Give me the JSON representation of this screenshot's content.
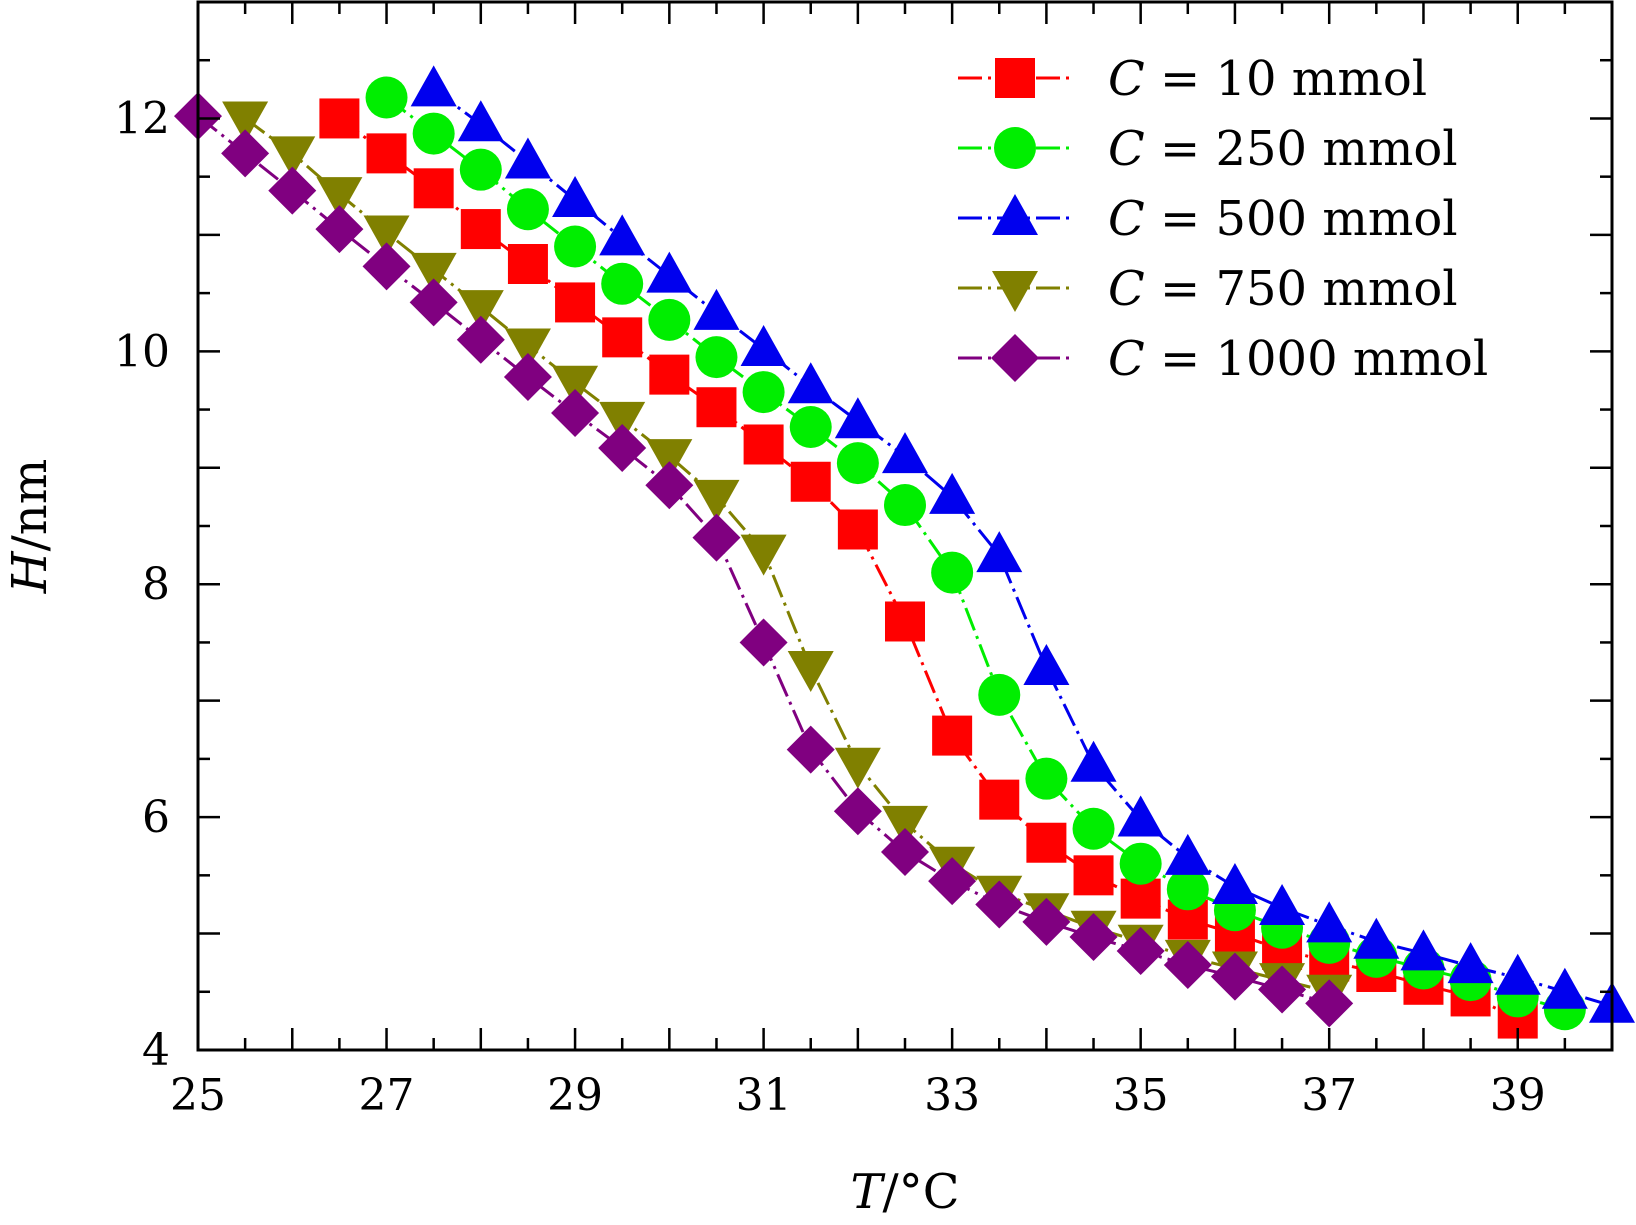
{
  "chart_data": {
    "type": "line",
    "title": "",
    "xlabel_italic": "T",
    "xlabel_unit": "/°C",
    "ylabel_italic": "H",
    "ylabel_unit": "/nm",
    "xlim": [
      25,
      40
    ],
    "ylim": [
      4,
      13
    ],
    "x_major_ticks": [
      25,
      27,
      29,
      31,
      33,
      35,
      37,
      39
    ],
    "x_tick_labels": [
      "25",
      "27",
      "29",
      "31",
      "33",
      "35",
      "37",
      "39"
    ],
    "y_major_ticks": [
      4,
      6,
      8,
      10,
      12
    ],
    "y_tick_labels": [
      "4",
      "6",
      "8",
      "10",
      "12"
    ],
    "grid": false,
    "legend_position": "top-right",
    "series": [
      {
        "name": "C = 10 mmol",
        "label_var": "C",
        "label_value": "10 mmol",
        "color": "#ff0000",
        "marker": "square",
        "x": [
          26.5,
          27,
          27.5,
          28,
          28.5,
          29,
          29.5,
          30,
          30.5,
          31,
          31.5,
          32,
          32.5,
          33,
          33.5,
          34,
          34.5,
          35,
          35.5,
          36,
          36.5,
          37,
          37.5,
          38,
          38.5,
          39
        ],
        "y": [
          12.0,
          11.7,
          11.4,
          11.05,
          10.75,
          10.42,
          10.12,
          9.8,
          9.52,
          9.2,
          8.88,
          8.47,
          7.68,
          6.7,
          6.15,
          5.78,
          5.5,
          5.3,
          5.12,
          5.0,
          4.86,
          4.76,
          4.67,
          4.56,
          4.46,
          4.27
        ]
      },
      {
        "name": "C = 250 mmol",
        "label_var": "C",
        "label_value": "250 mmol",
        "color": "#00ee00",
        "marker": "circle",
        "x": [
          27,
          27.5,
          28,
          28.5,
          29,
          29.5,
          30,
          30.5,
          31,
          31.5,
          32,
          32.5,
          33,
          33.5,
          34,
          34.5,
          35,
          35.5,
          36,
          36.5,
          37,
          37.5,
          38,
          38.5,
          39,
          39.5
        ],
        "y": [
          12.18,
          11.87,
          11.56,
          11.22,
          10.9,
          10.58,
          10.27,
          9.95,
          9.65,
          9.35,
          9.04,
          8.68,
          8.1,
          7.05,
          6.33,
          5.9,
          5.6,
          5.38,
          5.2,
          5.05,
          4.92,
          4.8,
          4.7,
          4.6,
          4.46,
          4.35
        ]
      },
      {
        "name": "C = 500 mmol",
        "label_var": "C",
        "label_value": "500 mmol",
        "color": "#0000ee",
        "marker": "triangle-up",
        "x": [
          27.5,
          28,
          28.5,
          29,
          29.5,
          30,
          30.5,
          31,
          31.5,
          32,
          32.5,
          33,
          33.5,
          34,
          34.5,
          35,
          35.5,
          36,
          36.5,
          37,
          37.5,
          38,
          38.5,
          39,
          39.5,
          40
        ],
        "y": [
          12.25,
          11.95,
          11.63,
          11.3,
          10.97,
          10.65,
          10.33,
          10.02,
          9.7,
          9.4,
          9.1,
          8.75,
          8.25,
          7.28,
          6.45,
          5.98,
          5.65,
          5.4,
          5.22,
          5.07,
          4.93,
          4.83,
          4.72,
          4.62,
          4.5,
          4.38
        ]
      },
      {
        "name": "C = 750 mmol",
        "label_var": "C",
        "label_value": "750 mmol",
        "color": "#808000",
        "marker": "triangle-down",
        "x": [
          25.5,
          26,
          26.5,
          27,
          27.5,
          28,
          28.5,
          29,
          29.5,
          30,
          30.5,
          31,
          31.5,
          32,
          32.5,
          33,
          33.5,
          34,
          34.5,
          35,
          35.5,
          36,
          36.5,
          37
        ],
        "y": [
          12.0,
          11.7,
          11.35,
          11.02,
          10.7,
          10.38,
          10.05,
          9.73,
          9.42,
          9.1,
          8.75,
          8.28,
          7.28,
          6.45,
          5.95,
          5.6,
          5.35,
          5.2,
          5.05,
          4.93,
          4.8,
          4.7,
          4.6,
          4.5
        ]
      },
      {
        "name": "C = 1000 mmol",
        "label_var": "C",
        "label_value": "1000 mmol",
        "color": "#800080",
        "marker": "diamond",
        "x": [
          25,
          25.5,
          26,
          26.5,
          27,
          27.5,
          28,
          28.5,
          29,
          29.5,
          30,
          30.5,
          31,
          31.5,
          32,
          32.5,
          33,
          33.5,
          34,
          34.5,
          35,
          35.5,
          36,
          36.5,
          37
        ],
        "y": [
          12.02,
          11.7,
          11.38,
          11.05,
          10.73,
          10.42,
          10.1,
          9.78,
          9.47,
          9.17,
          8.85,
          8.4,
          7.5,
          6.58,
          6.05,
          5.7,
          5.45,
          5.25,
          5.1,
          4.97,
          4.85,
          4.73,
          4.63,
          4.52,
          4.4
        ]
      }
    ]
  }
}
